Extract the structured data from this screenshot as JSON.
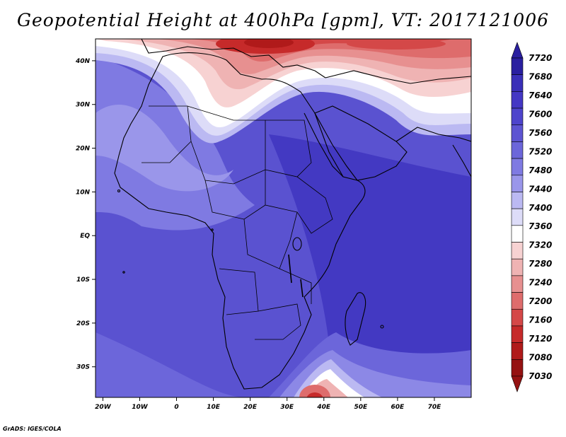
{
  "title": "Geopotential Height at 400hPa [gpm], VT: 2017121006",
  "credit": "GrADS: IGES/COLA",
  "lat_labels": [
    "40N",
    "30N",
    "20N",
    "10N",
    "EQ",
    "10S",
    "20S",
    "30S"
  ],
  "lon_labels": [
    "20W",
    "10W",
    "0",
    "10E",
    "20E",
    "30E",
    "40E",
    "50E",
    "60E",
    "70E"
  ],
  "colorbar": {
    "levels": [
      "7720",
      "7680",
      "7640",
      "7600",
      "7560",
      "7520",
      "7480",
      "7440",
      "7400",
      "7360",
      "7320",
      "7280",
      "7240",
      "7200",
      "7160",
      "7120",
      "7080",
      "7030"
    ],
    "colors": [
      "#2a1fa0",
      "#3a2fb8",
      "#4437c4",
      "#4e44cc",
      "#5d54d2",
      "#6c66da",
      "#7f7ae2",
      "#9a96ea",
      "#bbb9f2",
      "#dddcf8",
      "#ffffff",
      "#f7d2d2",
      "#efb3b3",
      "#e79090",
      "#de6c6c",
      "#d44848",
      "#c62a2a",
      "#b01a1a",
      "#951212"
    ]
  },
  "map_extent": {
    "lon": [
      -22,
      80
    ],
    "lat": [
      -37,
      45
    ]
  }
}
